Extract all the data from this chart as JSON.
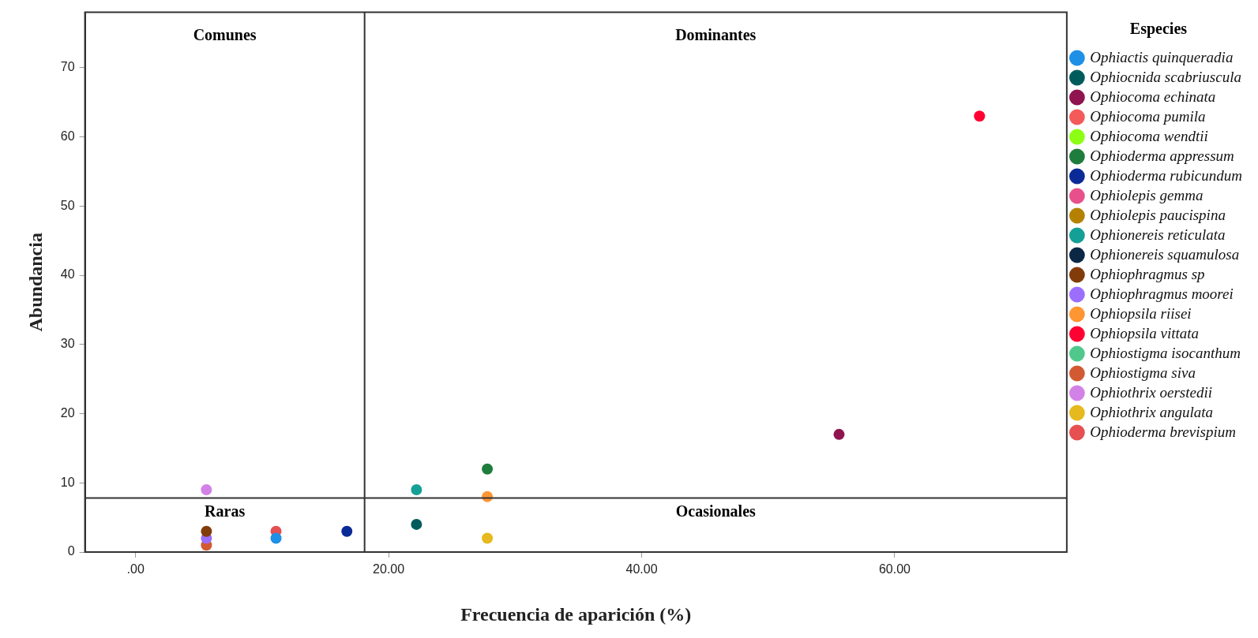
{
  "chart_data": {
    "type": "scatter",
    "xlabel": "Frecuencia de aparición (%)",
    "ylabel": "Abundancia",
    "legend_title": "Especies",
    "xlim": [
      -4,
      73.6
    ],
    "ylim": [
      0,
      78
    ],
    "xticks": [
      {
        "value": 0,
        "label": ".00"
      },
      {
        "value": 20,
        "label": "20.00"
      },
      {
        "value": 40,
        "label": "40.00"
      },
      {
        "value": 60,
        "label": "60.00"
      }
    ],
    "yticks": [
      0,
      10,
      20,
      30,
      40,
      50,
      60,
      70
    ],
    "grid": false,
    "legend": "right",
    "marker": "circle",
    "series": [
      {
        "name": "Ophiactis quinqueradia",
        "color": "#1e90e6",
        "x": [
          11.1
        ],
        "values": [
          2
        ]
      },
      {
        "name": "Ophiocnida scabriuscula",
        "color": "#005c5c",
        "x": [
          22.2
        ],
        "values": [
          4
        ]
      },
      {
        "name": "Ophiocoma echinata",
        "color": "#8f1450",
        "x": [
          55.6
        ],
        "values": [
          17
        ]
      },
      {
        "name": "Ophiocoma pumila",
        "color": "#f55a5a",
        "x": [
          null
        ],
        "values": [
          null
        ]
      },
      {
        "name": "Ophiocoma wendtii",
        "color": "#8cff14",
        "x": [
          null
        ],
        "values": [
          null
        ]
      },
      {
        "name": "Ophioderma appressum",
        "color": "#1e7d3c",
        "x": [
          27.8
        ],
        "values": [
          12
        ]
      },
      {
        "name": "Ophioderma rubicundum",
        "color": "#0a2a96",
        "x": [
          16.7
        ],
        "values": [
          3
        ]
      },
      {
        "name": "Ophiolepis gemma",
        "color": "#e8508c",
        "x": [
          null
        ],
        "values": [
          null
        ]
      },
      {
        "name": "Ophiolepis paucispina",
        "color": "#b48200",
        "x": [
          null
        ],
        "values": [
          null
        ]
      },
      {
        "name": "Ophionereis reticulata",
        "color": "#14a096",
        "x": [
          22.2
        ],
        "values": [
          9
        ]
      },
      {
        "name": "Ophionereis squamulosa",
        "color": "#0a2846",
        "x": [
          null
        ],
        "values": [
          null
        ]
      },
      {
        "name": "Ophiophragmus sp",
        "color": "#823c0a",
        "x": [
          5.6
        ],
        "values": [
          3
        ]
      },
      {
        "name": "Ophiophragmus moorei",
        "color": "#9b6eff",
        "x": [
          5.6
        ],
        "values": [
          2
        ]
      },
      {
        "name": "Ophiopsila riisei",
        "color": "#ff9632",
        "x": [
          27.8
        ],
        "values": [
          8
        ]
      },
      {
        "name": "Ophiopsila vittata",
        "color": "#ff0032",
        "x": [
          66.7
        ],
        "values": [
          63
        ]
      },
      {
        "name": "Ophiostigma isocanthum",
        "color": "#50c88c",
        "x": [
          null
        ],
        "values": [
          null
        ]
      },
      {
        "name": "Ophiostigma siva",
        "color": "#d25a32",
        "x": [
          5.6
        ],
        "values": [
          1
        ]
      },
      {
        "name": "Ophiothrix oerstedii",
        "color": "#d282e6",
        "x": [
          5.6
        ],
        "values": [
          9
        ]
      },
      {
        "name": "Ophiothrix angulata",
        "color": "#e6b91e",
        "x": [
          27.8
        ],
        "values": [
          2
        ]
      },
      {
        "name": "Ophioderma brevispium",
        "color": "#e65050",
        "x": [
          11.1
        ],
        "values": [
          3
        ]
      }
    ],
    "ref_lines": [
      {
        "axis": "x",
        "value": 18.1,
        "color": "#333333"
      },
      {
        "axis": "y",
        "value": 7.8,
        "color": "#333333"
      }
    ],
    "annotations": [
      "Comunes",
      "Dominantes",
      "Raras",
      "Ocasionales"
    ]
  }
}
